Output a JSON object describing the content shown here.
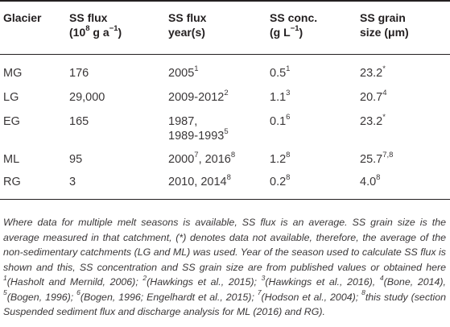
{
  "headers": {
    "glacier": "Glacier",
    "flux_line1": "SS flux",
    "flux_line2_pre": "(10",
    "flux_exp": "8",
    "flux_line2_post": " g a",
    "flux_unit_exp": "−1",
    "flux_line2_close": ")",
    "year_line1": "SS flux",
    "year_line2": "year(s)",
    "conc_line1": "SS conc.",
    "conc_line2_pre": "(g L",
    "conc_exp": "−1",
    "conc_line2_close": ")",
    "grain_line1": "SS grain",
    "grain_line2": "size (μm)"
  },
  "rows": [
    {
      "glacier": "MG",
      "flux": "176",
      "year": "2005",
      "year_sup": "1",
      "year2": "",
      "year2_sup": "",
      "conc": "0.5",
      "conc_sup": "1",
      "grain": "23.2",
      "grain_sup": "*"
    },
    {
      "glacier": "LG",
      "flux": "29,000",
      "year": "2009-2012",
      "year_sup": "2",
      "year2": "",
      "year2_sup": "",
      "conc": "1.1",
      "conc_sup": "3",
      "grain": "20.7",
      "grain_sup": "4"
    },
    {
      "glacier": "EG",
      "flux": "165",
      "year": "1987,",
      "year_sup": "",
      "year2": "1989-1993",
      "year2_sup": "5",
      "conc": "0.1",
      "conc_sup": "6",
      "grain": "23.2",
      "grain_sup": "*"
    },
    {
      "glacier": "ML",
      "flux": "95",
      "year": "2000",
      "year_sup": "7",
      "year_mid": ", 2016",
      "year_mid_sup": "8",
      "conc": "1.2",
      "conc_sup": "8",
      "grain": "25.7",
      "grain_sup": "7,8"
    },
    {
      "glacier": "RG",
      "flux": "3",
      "year": "2010, 2014",
      "year_sup": "8",
      "conc": "0.2",
      "conc_sup": "8",
      "grain": "4.0",
      "grain_sup": "8"
    }
  ],
  "footnote": {
    "text1": "Where data for multiple melt seasons is available, SS flux is an average. SS grain size is the average measured in that catchment, (*) denotes data not available, therefore, the average of the non-sedimentary catchments (LG and ML) was used. Year of the season used to calculate SS flux is shown and this, SS concentration and SS grain size are from published values or obtained here ",
    "s1": "1",
    "r1": "(Hasholt and Mernild, 2006)",
    "sep1": "; ",
    "s2": "2",
    "r2": "(Hawkings et al., 2015)",
    "sep2": ";",
    "s3": "3",
    "r3": "(Hawkings et al., 2016)",
    "sep3": ", ",
    "s4": "4",
    "r4": "(Bone, 2014)",
    "sep4": ", ",
    "s5": "5",
    "r5": "(Bogen, 1996)",
    "sep5": "; ",
    "s6": "6",
    "r6": "(Bogen, 1996; Engelhardt et al., 2015)",
    "sep6": "; ",
    "s7": "7",
    "r7": "(Hodson et al., 2004)",
    "sep7": "; ",
    "s8": "8",
    "r8": "this study (section Suspended sediment flux and discharge analysis for ML (2016) and RG)",
    "end": "."
  }
}
